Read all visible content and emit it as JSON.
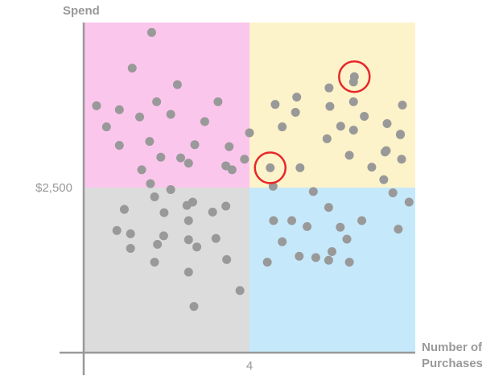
{
  "chart_data": {
    "type": "scatter",
    "title": "",
    "ylabel": "Spend",
    "xlabel": [
      "Number of",
      "Purchases"
    ],
    "xlim": [
      0,
      8
    ],
    "ylim": [
      0,
      5000
    ],
    "x_tick": {
      "value": 4,
      "label": "4"
    },
    "y_tick": {
      "value": 2500,
      "label": "$2,500"
    },
    "grid": false,
    "quadrants": [
      {
        "x_range": [
          0,
          4
        ],
        "y_range": [
          2500,
          5000
        ],
        "color": "#fbc6ec"
      },
      {
        "x_range": [
          4,
          8
        ],
        "y_range": [
          2500,
          5000
        ],
        "color": "#fdf3ca"
      },
      {
        "x_range": [
          0,
          4
        ],
        "y_range": [
          0,
          2500
        ],
        "color": "#dcdcdc"
      },
      {
        "x_range": [
          4,
          8
        ],
        "y_range": [
          0,
          2500
        ],
        "color": "#c5e9fb"
      }
    ],
    "point_color": "#999999",
    "highlight_color": "#e8262b",
    "axis_color": "#999999",
    "text_color": "#999999",
    "points": [
      [
        0.31,
        3740
      ],
      [
        0.55,
        3420
      ],
      [
        0.86,
        3140
      ],
      [
        0.86,
        3680
      ],
      [
        1.17,
        4310
      ],
      [
        1.35,
        3570
      ],
      [
        1.61,
        2560
      ],
      [
        1.59,
        3200
      ],
      [
        1.64,
        4850
      ],
      [
        1.76,
        3800
      ],
      [
        1.86,
        2960
      ],
      [
        2.1,
        3610
      ],
      [
        2.26,
        4060
      ],
      [
        2.53,
        2870
      ],
      [
        2.92,
        3500
      ],
      [
        3.24,
        3800
      ],
      [
        3.43,
        2830
      ],
      [
        3.51,
        3120
      ],
      [
        3.58,
        2770
      ],
      [
        3.88,
        2930
      ],
      [
        4.0,
        3330
      ],
      [
        2.68,
        3150
      ],
      [
        1.4,
        2770
      ],
      [
        2.34,
        2950
      ],
      [
        4.62,
        3760
      ],
      [
        4.79,
        3420
      ],
      [
        5.11,
        3640
      ],
      [
        5.14,
        3870
      ],
      [
        5.22,
        2800
      ],
      [
        5.87,
        3240
      ],
      [
        5.92,
        4010
      ],
      [
        5.94,
        3730
      ],
      [
        6.2,
        3430
      ],
      [
        6.41,
        2990
      ],
      [
        6.51,
        3800
      ],
      [
        6.51,
        4100
      ],
      [
        6.77,
        3580
      ],
      [
        6.95,
        2810
      ],
      [
        7.24,
        2620
      ],
      [
        7.27,
        3040
      ],
      [
        7.3,
        3060
      ],
      [
        7.32,
        3470
      ],
      [
        7.64,
        3310
      ],
      [
        7.67,
        2930
      ],
      [
        7.69,
        3750
      ],
      [
        7.64,
        3300
      ],
      [
        4.57,
        2520
      ],
      [
        6.51,
        3370
      ],
      [
        0.98,
        2170
      ],
      [
        0.8,
        1850
      ],
      [
        1.13,
        1800
      ],
      [
        1.13,
        1580
      ],
      [
        1.71,
        1370
      ],
      [
        1.71,
        2360
      ],
      [
        1.93,
        1770
      ],
      [
        1.94,
        2120
      ],
      [
        2.1,
        2470
      ],
      [
        2.49,
        2230
      ],
      [
        2.53,
        1710
      ],
      [
        2.53,
        1220
      ],
      [
        2.53,
        2000
      ],
      [
        2.63,
        2280
      ],
      [
        2.66,
        700
      ],
      [
        2.73,
        1600
      ],
      [
        3.11,
        2130
      ],
      [
        3.19,
        1730
      ],
      [
        3.45,
        1410
      ],
      [
        3.43,
        2220
      ],
      [
        3.77,
        940
      ],
      [
        1.78,
        1640
      ],
      [
        4.43,
        1370
      ],
      [
        4.58,
        2000
      ],
      [
        4.79,
        1680
      ],
      [
        5.02,
        2000
      ],
      [
        5.2,
        1460
      ],
      [
        5.39,
        1910
      ],
      [
        5.6,
        1440
      ],
      [
        5.91,
        1400
      ],
      [
        5.91,
        2200
      ],
      [
        5.99,
        1530
      ],
      [
        6.19,
        1900
      ],
      [
        6.35,
        1720
      ],
      [
        6.41,
        1370
      ],
      [
        6.71,
        2000
      ],
      [
        7.46,
        2420
      ],
      [
        7.59,
        1870
      ],
      [
        7.85,
        2280
      ],
      [
        5.54,
        2440
      ]
    ],
    "highlighted_points": [
      [
        4.5,
        2800
      ],
      [
        6.53,
        4180
      ]
    ]
  }
}
